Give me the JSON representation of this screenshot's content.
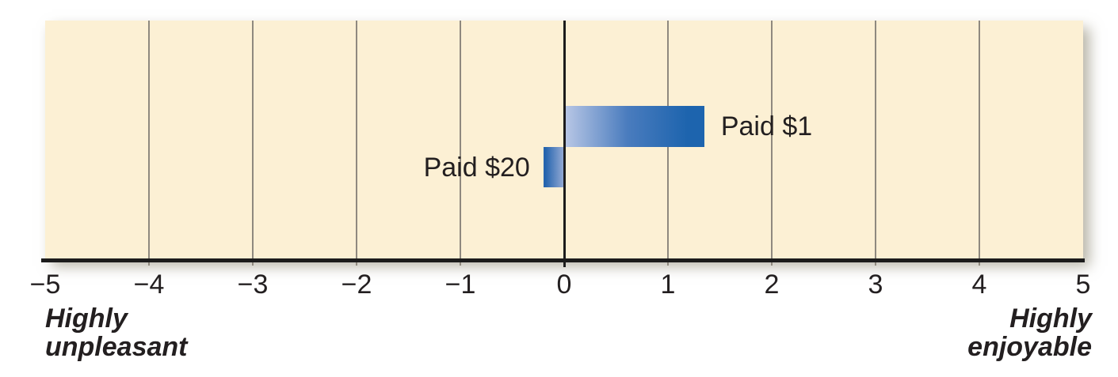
{
  "figure": {
    "background_color": "#ffffff",
    "plot_background_color": "#fcf0d4",
    "gridline_color": "#8f897f",
    "zero_line_color": "#1c1c1c",
    "axis_line_color": "#1c1c1c",
    "text_color": "#231f20",
    "bar_gradient_light": "#bac8e6",
    "bar_gradient_dark": "#1d64ae",
    "shadow_color": "rgba(125,120,96,0.55)"
  },
  "chart_data": {
    "type": "bar",
    "orientation": "horizontal",
    "title": "",
    "xlabel": "",
    "ylabel": "",
    "categories": [
      "Paid $1",
      "Paid $20"
    ],
    "values": [
      1.35,
      -0.2
    ],
    "bars": [
      {
        "label": "Paid $1",
        "value": 1.35,
        "label_position": "right-of-bar-tip"
      },
      {
        "label": "Paid $20",
        "value": -0.2,
        "label_position": "left-of-bar-tip"
      }
    ],
    "xlim": [
      -5,
      5
    ],
    "grid": "vertical-at-each-integer",
    "legend": "none",
    "ticks": [
      {
        "value": -5,
        "label": "−5"
      },
      {
        "value": -4,
        "label": "−4"
      },
      {
        "value": -3,
        "label": "−3"
      },
      {
        "value": -2,
        "label": "−2"
      },
      {
        "value": -1,
        "label": "−1"
      },
      {
        "value": 0,
        "label": "0"
      },
      {
        "value": 1,
        "label": "1"
      },
      {
        "value": 2,
        "label": "2"
      },
      {
        "value": 3,
        "label": "3"
      },
      {
        "value": 4,
        "label": "4"
      },
      {
        "value": 5,
        "label": "5"
      }
    ],
    "axis_end_labels": {
      "left_line1": "Highly",
      "left_line2": "unpleasant",
      "right_line1": "Highly",
      "right_line2": "enjoyable"
    }
  }
}
